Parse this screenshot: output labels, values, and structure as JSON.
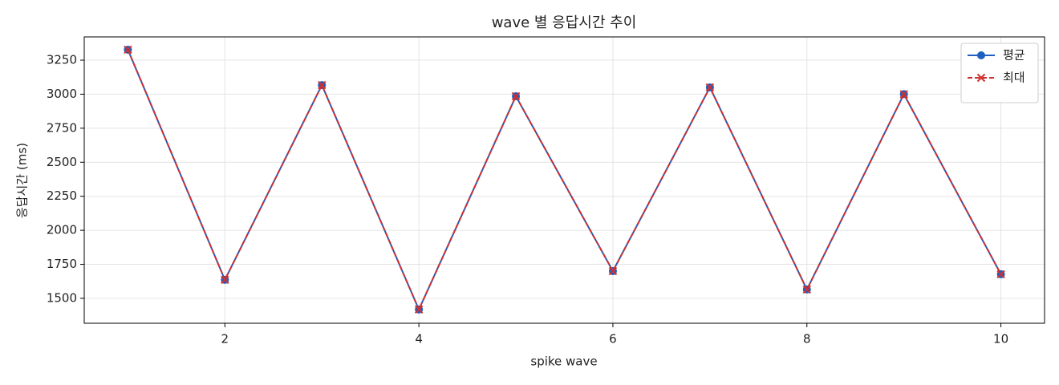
{
  "chart_data": {
    "type": "line",
    "title": "wave 별 응답시간 추이",
    "x_label": "spike wave",
    "y_label": "응답시간 (ms)",
    "x": [
      1,
      2,
      3,
      4,
      5,
      6,
      7,
      8,
      9,
      10
    ],
    "series": [
      {
        "name": "평균",
        "color": "#1f5fbf",
        "marker": "circle",
        "linestyle": "solid",
        "values": [
          3327,
          1636,
          3067,
          1418,
          2985,
          1700,
          3050,
          1565,
          3000,
          1677
        ]
      },
      {
        "name": "최대",
        "color": "#d03030",
        "marker": "x",
        "linestyle": "dashed",
        "values": [
          3327,
          1636,
          3067,
          1418,
          2985,
          1700,
          3050,
          1565,
          3000,
          1677
        ]
      }
    ],
    "xlim": [
      0.55,
      10.45
    ],
    "xticks": [
      2,
      4,
      6,
      8,
      10
    ],
    "ylim": [
      1317,
      3421
    ],
    "yticks": [
      1500,
      1750,
      2000,
      2250,
      2500,
      2750,
      3000,
      3250
    ],
    "grid": true,
    "legend": "upper right"
  }
}
